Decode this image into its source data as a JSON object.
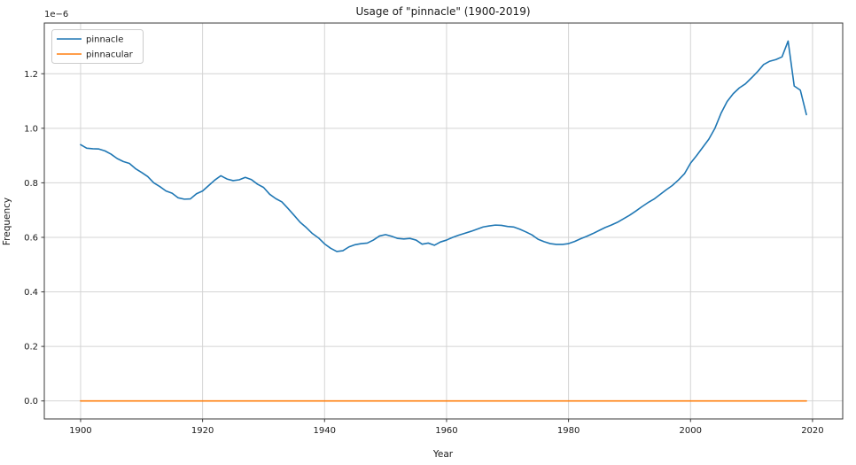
{
  "figure": {
    "title": "Usage of \"pinnacle\" (1900-2019)",
    "xlabel": "Year",
    "ylabel": "Frequency",
    "offset_label": "1e−6"
  },
  "legend": {
    "position": "upper left",
    "items": [
      {
        "label": "pinnacle",
        "color": "#1f77b4"
      },
      {
        "label": "pinnacular",
        "color": "#ff7f0e"
      }
    ]
  },
  "colors": {
    "series_blue": "#1f77b4",
    "series_orange": "#ff7f0e",
    "grid": "#d4d4d4",
    "spine": "#3a3a3a",
    "text": "#1a1a1a",
    "background": "#ffffff",
    "legend_border": "#cccccc"
  },
  "chart_data": {
    "type": "line",
    "title": "Usage of \"pinnacle\" (1900-2019)",
    "xlabel": "Year",
    "ylabel": "Frequency",
    "y_offset_label": "1e−6",
    "y_unit_multiplier": 1e-06,
    "grid": true,
    "legend_position": "upper left",
    "xlim": [
      1894.05,
      2024.95
    ],
    "ylim": [
      -0.066,
      1.386
    ],
    "xticks": [
      1900,
      1920,
      1940,
      1960,
      1980,
      2000,
      2020
    ],
    "yticks": [
      0.0,
      0.2,
      0.4,
      0.6,
      0.8,
      1.0,
      1.2
    ],
    "x_start_year": 1900,
    "x_end_year": 2019,
    "series": [
      {
        "name": "pinnacle",
        "color": "#1f77b4",
        "values": [
          0.94,
          0.927,
          0.925,
          0.924,
          0.917,
          0.905,
          0.889,
          0.878,
          0.871,
          0.852,
          0.838,
          0.823,
          0.8,
          0.786,
          0.77,
          0.762,
          0.745,
          0.74,
          0.741,
          0.76,
          0.77,
          0.79,
          0.81,
          0.826,
          0.814,
          0.808,
          0.811,
          0.82,
          0.812,
          0.795,
          0.783,
          0.758,
          0.742,
          0.73,
          0.706,
          0.681,
          0.655,
          0.636,
          0.614,
          0.598,
          0.576,
          0.56,
          0.548,
          0.551,
          0.565,
          0.573,
          0.577,
          0.579,
          0.59,
          0.605,
          0.61,
          0.604,
          0.596,
          0.594,
          0.596,
          0.59,
          0.575,
          0.579,
          0.571,
          0.583,
          0.59,
          0.6,
          0.608,
          0.615,
          0.622,
          0.63,
          0.638,
          0.642,
          0.645,
          0.644,
          0.64,
          0.638,
          0.63,
          0.62,
          0.609,
          0.593,
          0.584,
          0.577,
          0.574,
          0.574,
          0.577,
          0.585,
          0.595,
          0.604,
          0.614,
          0.625,
          0.636,
          0.645,
          0.655,
          0.668,
          0.681,
          0.696,
          0.712,
          0.727,
          0.74,
          0.757,
          0.774,
          0.79,
          0.81,
          0.833,
          0.872,
          0.9,
          0.93,
          0.96,
          1.0,
          1.055,
          1.098,
          1.127,
          1.148,
          1.163,
          1.185,
          1.208,
          1.234,
          1.246,
          1.252,
          1.262,
          1.32,
          1.155,
          1.14,
          1.05
        ]
      },
      {
        "name": "pinnacular",
        "color": "#ff7f0e",
        "constant_value": 0.0
      }
    ]
  }
}
